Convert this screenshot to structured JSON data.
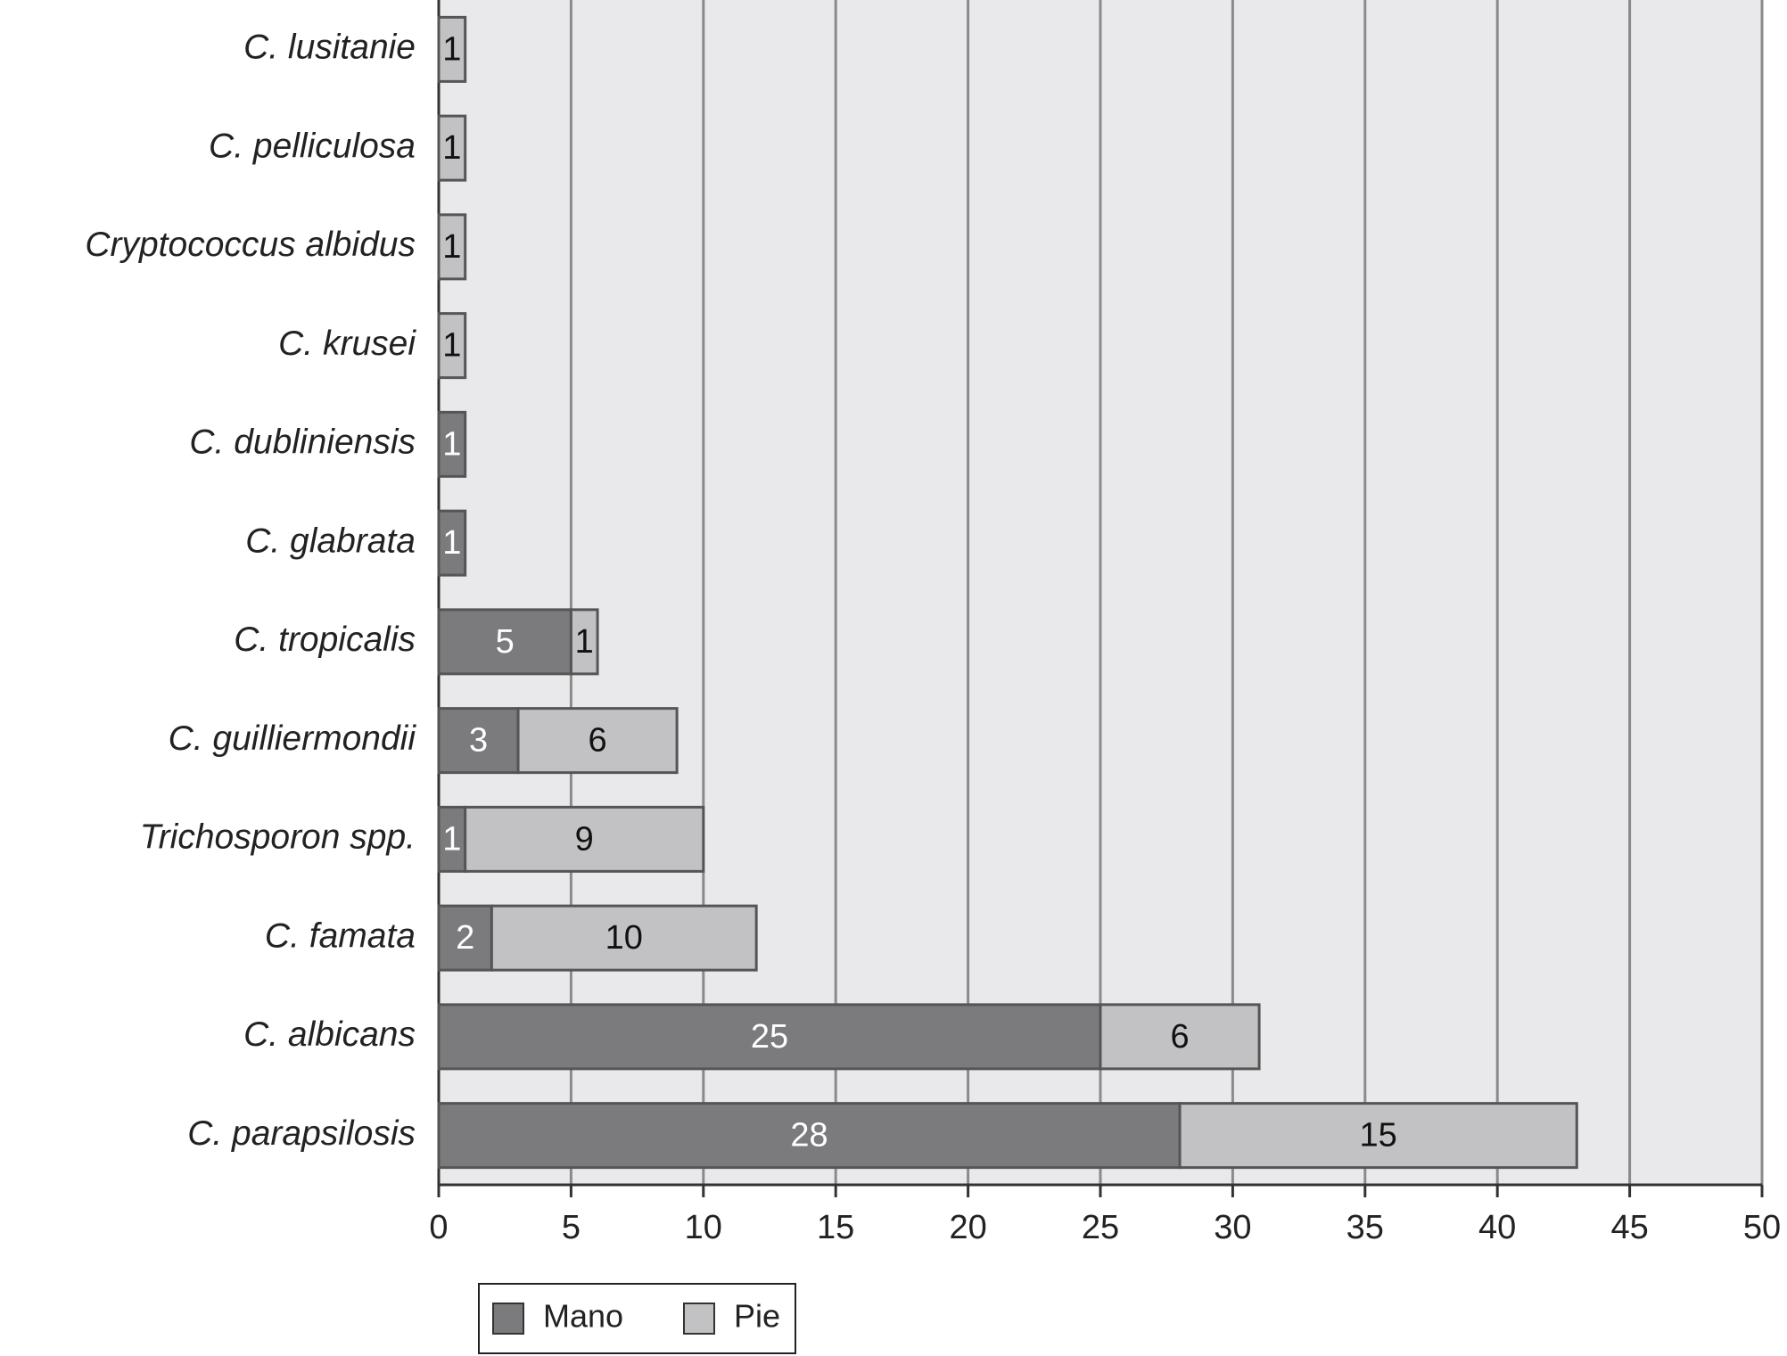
{
  "chart_data": {
    "type": "stacked-bar-horizontal",
    "categories": [
      "C. lusitanie",
      "C. pelliculosa",
      "Cryptococcus albidus",
      "C. krusei",
      "C. dubliniensis",
      "C. glabrata",
      "C. tropicalis",
      "C. guilliermondii",
      "Trichosporon spp.",
      "C. famata",
      "C. albicans",
      "C. parapsilosis"
    ],
    "series": [
      {
        "name": "Mano",
        "color": "#7b7b7e",
        "values": [
          null,
          null,
          null,
          null,
          1,
          1,
          5,
          3,
          1,
          2,
          25,
          28
        ]
      },
      {
        "name": "Pie",
        "color": "#c2c2c4",
        "values": [
          1,
          1,
          1,
          1,
          null,
          null,
          1,
          6,
          9,
          10,
          6,
          15
        ]
      }
    ],
    "xlim": [
      0,
      50
    ],
    "xticks": [
      0,
      5,
      10,
      15,
      20,
      25,
      30,
      35,
      40,
      45,
      50
    ],
    "grid": true
  }
}
